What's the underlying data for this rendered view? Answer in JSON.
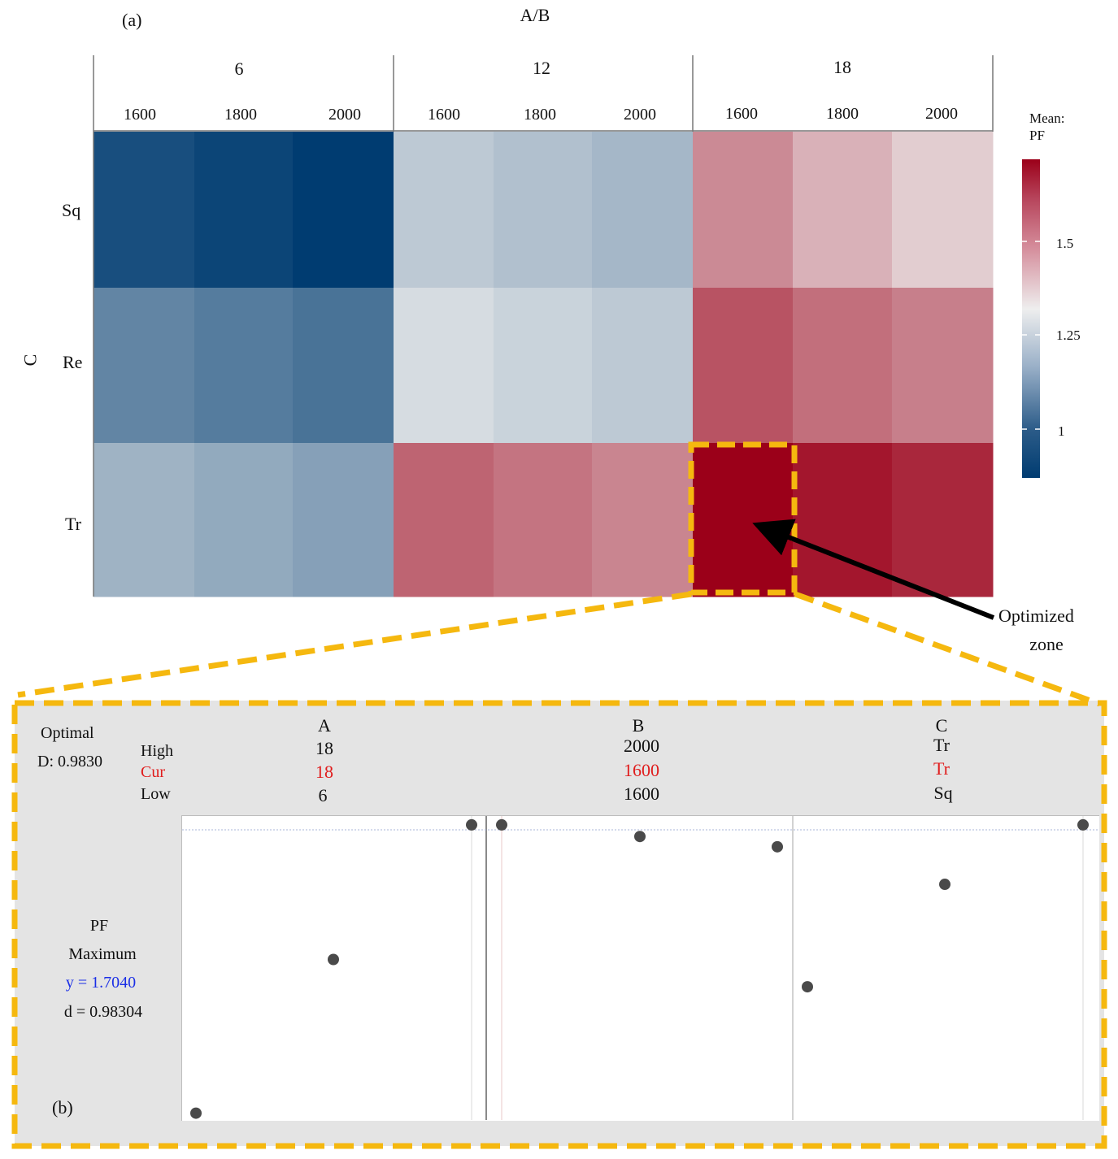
{
  "panel_a": {
    "label": "(a)",
    "top_axis_title": "A/B",
    "row_axis_title": "C",
    "legend_title_line1": "Mean:",
    "legend_title_line2": "PF",
    "annotation_line1": "Optimized",
    "annotation_line2": "zone"
  },
  "panel_b": {
    "label": "(b)",
    "optimal_label": "Optimal",
    "d_total": "D: 0.9830",
    "row_high": "High",
    "row_cur": "Cur",
    "row_low": "Low",
    "response_name": "PF",
    "response_goal": "Maximum",
    "response_y": "y = 1.7040",
    "response_d": "d = 0.98304",
    "factors": [
      {
        "name": "A",
        "high": "18",
        "cur": "18",
        "low": "6"
      },
      {
        "name": "B",
        "high": "2000",
        "cur": "1600",
        "low": "1600"
      },
      {
        "name": "C",
        "high": "Tr",
        "cur": "Tr",
        "low": "Sq"
      }
    ]
  },
  "colors": {
    "scale_low": "#003c71",
    "scale_mid": "#eeeeee",
    "scale_high": "#9b0019",
    "highlight": "#f5b80f",
    "cur_text": "#e01c1c",
    "y_text": "#1a2ee6"
  },
  "chart_data": [
    {
      "type": "heatmap",
      "title": "",
      "x_groups": [
        {
          "label": "6",
          "sub": [
            "1600",
            "1800",
            "2000"
          ]
        },
        {
          "label": "12",
          "sub": [
            "1600",
            "1800",
            "2000"
          ]
        },
        {
          "label": "18",
          "sub": [
            "1600",
            "1800",
            "2000"
          ]
        }
      ],
      "xlabel": "A/B",
      "ylabel": "C",
      "rows": [
        "Sq",
        "Re",
        "Tr"
      ],
      "values": [
        [
          0.92,
          0.9,
          0.88,
          1.19,
          1.17,
          1.15,
          1.45,
          1.38,
          1.33
        ],
        [
          1.04,
          1.02,
          1.0,
          1.23,
          1.21,
          1.19,
          1.55,
          1.5,
          1.47
        ],
        [
          1.14,
          1.12,
          1.1,
          1.52,
          1.49,
          1.46,
          1.7,
          1.66,
          1.63
        ]
      ],
      "colorbar": {
        "ticks": [
          "1",
          "1.25",
          "1.5"
        ],
        "range": [
          0.88,
          1.7
        ]
      },
      "highlight_cell": {
        "row": "Tr",
        "group": "18",
        "sub": "1600"
      }
    },
    {
      "type": "scatter",
      "title": "Prediction profiler",
      "panels": [
        {
          "factor": "A",
          "points": [
            {
              "x": "6",
              "y": 0.86
            },
            {
              "x": "12",
              "y": 1.31
            },
            {
              "x": "18",
              "y": 1.704
            }
          ]
        },
        {
          "factor": "B",
          "points": [
            {
              "x": "1600",
              "y": 1.704
            },
            {
              "x": "1800",
              "y": 1.67
            },
            {
              "x": "2000",
              "y": 1.64
            }
          ]
        },
        {
          "factor": "C",
          "points": [
            {
              "x": "Sq",
              "y": 1.23
            },
            {
              "x": "Re",
              "y": 1.53
            },
            {
              "x": "Tr",
              "y": 1.704
            }
          ]
        }
      ],
      "ylim": [
        0.84,
        1.73
      ],
      "current_y": 1.704
    }
  ]
}
